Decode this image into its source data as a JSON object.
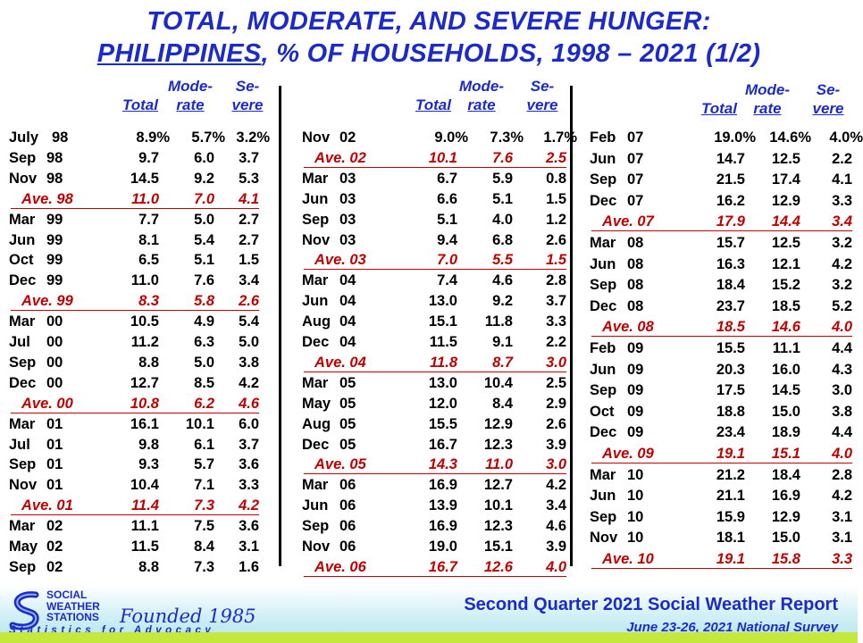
{
  "title": {
    "line1": "TOTAL, MODERATE, AND SEVERE HUNGER:",
    "line2_underlined": "PHILIPPINES",
    "line2_rest": ", % OF HOUSEHOLDS, 1998 – 2021 (1/2)"
  },
  "headers": {
    "total": "Total",
    "moderate_top": "Mode-",
    "moderate_bottom": "rate",
    "severe_top": "Se-",
    "severe_bottom": "vere"
  },
  "columns": [
    {
      "rows": [
        {
          "label": "July",
          "year": "98",
          "total": "8.9%",
          "moderate": "5.7%",
          "severe": "3.2%"
        },
        {
          "label": "Sep",
          "year": "98",
          "total": "9.7",
          "moderate": "6.0",
          "severe": "3.7"
        },
        {
          "label": "Nov",
          "year": "98",
          "total": "14.5",
          "moderate": "9.2",
          "severe": "5.3"
        },
        {
          "label": "Ave. 98",
          "total": "11.0",
          "moderate": "7.0",
          "severe": "4.1",
          "ave": true
        },
        {
          "label": "Mar",
          "year": "99",
          "total": "7.7",
          "moderate": "5.0",
          "severe": "2.7"
        },
        {
          "label": "Jun",
          "year": "99",
          "total": "8.1",
          "moderate": "5.4",
          "severe": "2.7"
        },
        {
          "label": "Oct",
          "year": "99",
          "total": "6.5",
          "moderate": "5.1",
          "severe": "1.5"
        },
        {
          "label": "Dec",
          "year": "99",
          "total": "11.0",
          "moderate": "7.6",
          "severe": "3.4"
        },
        {
          "label": "Ave. 99",
          "total": "8.3",
          "moderate": "5.8",
          "severe": "2.6",
          "ave": true
        },
        {
          "label": "Mar",
          "year": "00",
          "total": "10.5",
          "moderate": "4.9",
          "severe": "5.4"
        },
        {
          "label": "Jul",
          "year": "00",
          "total": "11.2",
          "moderate": "6.3",
          "severe": "5.0"
        },
        {
          "label": "Sep",
          "year": "00",
          "total": "8.8",
          "moderate": "5.0",
          "severe": "3.8"
        },
        {
          "label": "Dec",
          "year": "00",
          "total": "12.7",
          "moderate": "8.5",
          "severe": "4.2"
        },
        {
          "label": "Ave. 00",
          "total": "10.8",
          "moderate": "6.2",
          "severe": "4.6",
          "ave": true
        },
        {
          "label": "Mar",
          "year": "01",
          "total": "16.1",
          "moderate": "10.1",
          "severe": "6.0"
        },
        {
          "label": "Jul",
          "year": "01",
          "total": "9.8",
          "moderate": "6.1",
          "severe": "3.7"
        },
        {
          "label": "Sep",
          "year": "01",
          "total": "9.3",
          "moderate": "5.7",
          "severe": "3.6"
        },
        {
          "label": "Nov",
          "year": "01",
          "total": "10.4",
          "moderate": "7.1",
          "severe": "3.3"
        },
        {
          "label": "Ave. 01",
          "total": "11.4",
          "moderate": "7.3",
          "severe": "4.2",
          "ave": true
        },
        {
          "label": "Mar",
          "year": "02",
          "total": "11.1",
          "moderate": "7.5",
          "severe": "3.6"
        },
        {
          "label": "May",
          "year": "02",
          "total": "11.5",
          "moderate": "8.4",
          "severe": "3.1"
        },
        {
          "label": "Sep",
          "year": "02",
          "total": "8.8",
          "moderate": "7.3",
          "severe": "1.6"
        }
      ]
    },
    {
      "rows": [
        {
          "label": "Nov",
          "year": "02",
          "total": "9.0%",
          "moderate": "7.3%",
          "severe": "1.7%"
        },
        {
          "label": "Ave. 02",
          "total": "10.1",
          "moderate": "7.6",
          "severe": "2.5",
          "ave": true
        },
        {
          "label": "Mar",
          "year": "03",
          "total": "6.7",
          "moderate": "5.9",
          "severe": "0.8"
        },
        {
          "label": "Jun",
          "year": "03",
          "total": "6.6",
          "moderate": "5.1",
          "severe": "1.5"
        },
        {
          "label": "Sep",
          "year": "03",
          "total": "5.1",
          "moderate": "4.0",
          "severe": "1.2"
        },
        {
          "label": "Nov",
          "year": "03",
          "total": "9.4",
          "moderate": "6.8",
          "severe": "2.6"
        },
        {
          "label": "Ave. 03",
          "total": "7.0",
          "moderate": "5.5",
          "severe": "1.5",
          "ave": true
        },
        {
          "label": "Mar",
          "year": "04",
          "total": "7.4",
          "moderate": "4.6",
          "severe": "2.8"
        },
        {
          "label": "Jun",
          "year": "04",
          "total": "13.0",
          "moderate": "9.2",
          "severe": "3.7"
        },
        {
          "label": "Aug",
          "year": "04",
          "total": "15.1",
          "moderate": "11.8",
          "severe": "3.3"
        },
        {
          "label": "Dec",
          "year": "04",
          "total": "11.5",
          "moderate": "9.1",
          "severe": "2.2"
        },
        {
          "label": "Ave. 04",
          "total": "11.8",
          "moderate": "8.7",
          "severe": "3.0",
          "ave": true
        },
        {
          "label": "Mar",
          "year": "05",
          "total": "13.0",
          "moderate": "10.4",
          "severe": "2.5"
        },
        {
          "label": "May",
          "year": "05",
          "total": "12.0",
          "moderate": "8.4",
          "severe": "2.9"
        },
        {
          "label": "Aug",
          "year": "05",
          "total": "15.5",
          "moderate": "12.9",
          "severe": "2.6"
        },
        {
          "label": "Dec",
          "year": "05",
          "total": "16.7",
          "moderate": "12.3",
          "severe": "3.9"
        },
        {
          "label": "Ave. 05",
          "total": "14.3",
          "moderate": "11.0",
          "severe": "3.0",
          "ave": true
        },
        {
          "label": "Mar",
          "year": "06",
          "total": "16.9",
          "moderate": "12.7",
          "severe": "4.2"
        },
        {
          "label": "Jun",
          "year": "06",
          "total": "13.9",
          "moderate": "10.1",
          "severe": "3.4"
        },
        {
          "label": "Sep",
          "year": "06",
          "total": "16.9",
          "moderate": "12.3",
          "severe": "4.6"
        },
        {
          "label": "Nov",
          "year": "06",
          "total": "19.0",
          "moderate": "15.1",
          "severe": "3.9"
        },
        {
          "label": "Ave. 06",
          "total": "16.7",
          "moderate": "12.6",
          "severe": "4.0",
          "ave": true
        }
      ]
    },
    {
      "rows": [
        {
          "label": "Feb",
          "year": "07",
          "total": "19.0%",
          "moderate": "14.6%",
          "severe": "4.0%"
        },
        {
          "label": "Jun",
          "year": "07",
          "total": "14.7",
          "moderate": "12.5",
          "severe": "2.2"
        },
        {
          "label": "Sep",
          "year": "07",
          "total": "21.5",
          "moderate": "17.4",
          "severe": "4.1"
        },
        {
          "label": "Dec",
          "year": "07",
          "total": "16.2",
          "moderate": "12.9",
          "severe": "3.3"
        },
        {
          "label": "Ave. 07",
          "total": "17.9",
          "moderate": "14.4",
          "severe": "3.4",
          "ave": true
        },
        {
          "label": "Mar",
          "year": "08",
          "total": "15.7",
          "moderate": "12.5",
          "severe": "3.2"
        },
        {
          "label": "Jun",
          "year": "08",
          "total": "16.3",
          "moderate": "12.1",
          "severe": "4.2"
        },
        {
          "label": "Sep",
          "year": "08",
          "total": "18.4",
          "moderate": "15.2",
          "severe": "3.2"
        },
        {
          "label": "Dec",
          "year": "08",
          "total": "23.7",
          "moderate": "18.5",
          "severe": "5.2"
        },
        {
          "label": "Ave. 08",
          "total": "18.5",
          "moderate": "14.6",
          "severe": "4.0",
          "ave": true
        },
        {
          "label": "Feb",
          "year": "09",
          "total": "15.5",
          "moderate": "11.1",
          "severe": "4.4"
        },
        {
          "label": "Jun",
          "year": "09",
          "total": "20.3",
          "moderate": "16.0",
          "severe": "4.3"
        },
        {
          "label": "Sep",
          "year": "09",
          "total": "17.5",
          "moderate": "14.5",
          "severe": "3.0"
        },
        {
          "label": "Oct",
          "year": "09",
          "total": "18.8",
          "moderate": "15.0",
          "severe": "3.8"
        },
        {
          "label": "Dec",
          "year": "09",
          "total": "23.4",
          "moderate": "18.9",
          "severe": "4.4"
        },
        {
          "label": "Ave. 09",
          "total": "19.1",
          "moderate": "15.1",
          "severe": "4.0",
          "ave": true
        },
        {
          "label": "Mar",
          "year": "10",
          "total": "21.2",
          "moderate": "18.4",
          "severe": "2.8"
        },
        {
          "label": "Jun",
          "year": "10",
          "total": "21.1",
          "moderate": "16.9",
          "severe": "4.2"
        },
        {
          "label": "Sep",
          "year": "10",
          "total": "15.9",
          "moderate": "12.9",
          "severe": "3.1"
        },
        {
          "label": "Nov",
          "year": "10",
          "total": "18.1",
          "moderate": "15.0",
          "severe": "3.1"
        },
        {
          "label": "Ave. 10",
          "total": "19.1",
          "moderate": "15.8",
          "severe": "3.3",
          "ave": true
        }
      ]
    }
  ],
  "footer": {
    "logo_lines": [
      "SOCIAL",
      "WEATHER",
      "STATIONS"
    ],
    "founded": "Founded 1985",
    "tagline": "Statistics for Advocacy",
    "report": "Second Quarter 2021 Social Weather Report",
    "survey": "June 23-26, 2021 National Survey"
  },
  "colors": {
    "title_blue": "#1c2bc8",
    "average_red": "#c00000",
    "footer_band": "#b6e4ec",
    "footer_bar": "#c4e83c"
  }
}
